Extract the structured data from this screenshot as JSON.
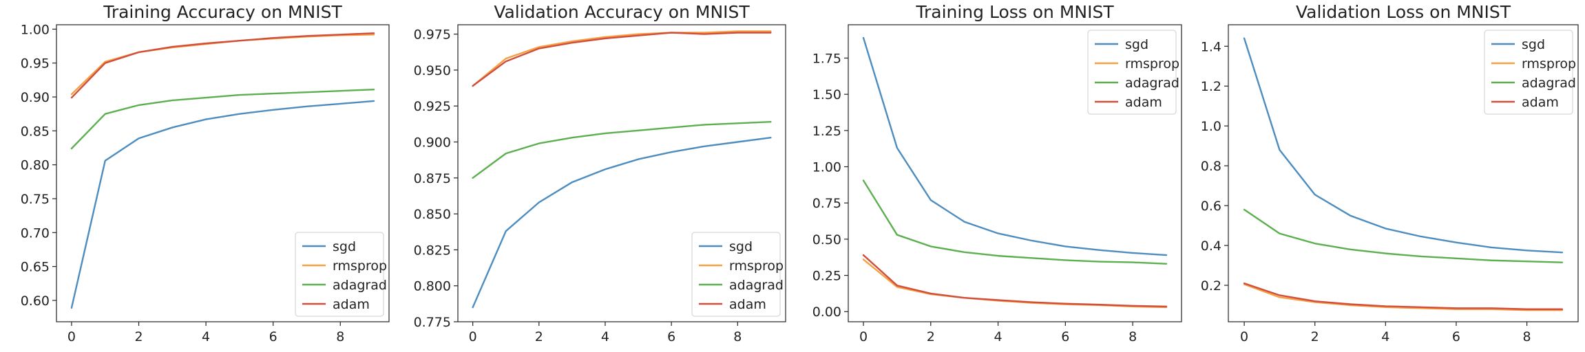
{
  "chart_data": [
    {
      "type": "line",
      "title": "Training Accuracy on MNIST",
      "xlabel": "",
      "ylabel": "",
      "x": [
        0,
        1,
        2,
        3,
        4,
        5,
        6,
        7,
        8,
        9
      ],
      "xlim": [
        -0.45,
        9.45
      ],
      "ylim": [
        0.5685,
        1.0065
      ],
      "xticks": [
        0,
        2,
        4,
        6,
        8
      ],
      "xtick_labels": [
        "0",
        "2",
        "4",
        "6",
        "8"
      ],
      "yticks": [
        0.6,
        0.65,
        0.7,
        0.75,
        0.8,
        0.85,
        0.9,
        0.95,
        1.0
      ],
      "ytick_labels": [
        "0.60",
        "0.65",
        "0.70",
        "0.75",
        "0.80",
        "0.85",
        "0.90",
        "0.95",
        "1.00"
      ],
      "grid": false,
      "legend_position": "lower-right",
      "series": [
        {
          "name": "sgd",
          "color": "#4c8cbf",
          "values": [
            0.589,
            0.806,
            0.839,
            0.855,
            0.867,
            0.875,
            0.881,
            0.886,
            0.89,
            0.894
          ]
        },
        {
          "name": "rmsprop",
          "color": "#f5a044",
          "values": [
            0.904,
            0.952,
            0.966,
            0.973,
            0.978,
            0.983,
            0.986,
            0.989,
            0.991,
            0.992
          ]
        },
        {
          "name": "adagrad",
          "color": "#5caf4f",
          "values": [
            0.824,
            0.875,
            0.888,
            0.895,
            0.899,
            0.903,
            0.905,
            0.907,
            0.909,
            0.911
          ]
        },
        {
          "name": "adam",
          "color": "#d04e3b",
          "values": [
            0.899,
            0.95,
            0.966,
            0.974,
            0.979,
            0.983,
            0.987,
            0.99,
            0.992,
            0.994
          ]
        }
      ]
    },
    {
      "type": "line",
      "title": "Validation Accuracy on MNIST",
      "xlabel": "",
      "ylabel": "",
      "x": [
        0,
        1,
        2,
        3,
        4,
        5,
        6,
        7,
        8,
        9
      ],
      "xlim": [
        -0.45,
        9.45
      ],
      "ylim": [
        0.775,
        0.9815
      ],
      "xticks": [
        0,
        2,
        4,
        6,
        8
      ],
      "xtick_labels": [
        "0",
        "2",
        "4",
        "6",
        "8"
      ],
      "yticks": [
        0.775,
        0.8,
        0.825,
        0.85,
        0.875,
        0.9,
        0.925,
        0.95,
        0.975
      ],
      "ytick_labels": [
        "0.775",
        "0.800",
        "0.825",
        "0.850",
        "0.875",
        "0.900",
        "0.925",
        "0.950",
        "0.975"
      ],
      "grid": false,
      "legend_position": "lower-right",
      "series": [
        {
          "name": "sgd",
          "color": "#4c8cbf",
          "values": [
            0.785,
            0.838,
            0.858,
            0.872,
            0.881,
            0.888,
            0.893,
            0.897,
            0.9,
            0.903
          ]
        },
        {
          "name": "rmsprop",
          "color": "#f5a044",
          "values": [
            0.939,
            0.958,
            0.966,
            0.97,
            0.973,
            0.975,
            0.976,
            0.976,
            0.977,
            0.977
          ]
        },
        {
          "name": "adagrad",
          "color": "#5caf4f",
          "values": [
            0.875,
            0.892,
            0.899,
            0.903,
            0.906,
            0.908,
            0.91,
            0.912,
            0.913,
            0.914
          ]
        },
        {
          "name": "adam",
          "color": "#d04e3b",
          "values": [
            0.939,
            0.956,
            0.965,
            0.969,
            0.972,
            0.974,
            0.976,
            0.975,
            0.976,
            0.976
          ]
        }
      ]
    },
    {
      "type": "line",
      "title": "Training Loss on MNIST",
      "xlabel": "",
      "ylabel": "",
      "x": [
        0,
        1,
        2,
        3,
        4,
        5,
        6,
        7,
        8,
        9
      ],
      "xlim": [
        -0.45,
        9.45
      ],
      "ylim": [
        -0.07,
        1.98
      ],
      "xticks": [
        0,
        2,
        4,
        6,
        8
      ],
      "xtick_labels": [
        "0",
        "2",
        "4",
        "6",
        "8"
      ],
      "yticks": [
        0.0,
        0.25,
        0.5,
        0.75,
        1.0,
        1.25,
        1.5,
        1.75
      ],
      "ytick_labels": [
        "0.00",
        "0.25",
        "0.50",
        "0.75",
        "1.00",
        "1.25",
        "1.50",
        "1.75"
      ],
      "grid": false,
      "legend_position": "upper-right",
      "series": [
        {
          "name": "sgd",
          "color": "#4c8cbf",
          "values": [
            1.89,
            1.13,
            0.77,
            0.62,
            0.54,
            0.49,
            0.45,
            0.425,
            0.405,
            0.39
          ]
        },
        {
          "name": "rmsprop",
          "color": "#f5a044",
          "values": [
            0.36,
            0.17,
            0.12,
            0.095,
            0.075,
            0.06,
            0.05,
            0.045,
            0.035,
            0.03
          ]
        },
        {
          "name": "adagrad",
          "color": "#5caf4f",
          "values": [
            0.905,
            0.53,
            0.45,
            0.41,
            0.385,
            0.37,
            0.355,
            0.345,
            0.34,
            0.33
          ]
        },
        {
          "name": "adam",
          "color": "#d04e3b",
          "values": [
            0.39,
            0.18,
            0.125,
            0.095,
            0.08,
            0.065,
            0.055,
            0.048,
            0.04,
            0.035
          ]
        }
      ]
    },
    {
      "type": "line",
      "title": "Validation Loss on MNIST",
      "xlabel": "",
      "ylabel": "",
      "x": [
        0,
        1,
        2,
        3,
        4,
        5,
        6,
        7,
        8,
        9
      ],
      "xlim": [
        -0.45,
        9.45
      ],
      "ylim": [
        0.017,
        1.508
      ],
      "xticks": [
        0,
        2,
        4,
        6,
        8
      ],
      "xtick_labels": [
        "0",
        "2",
        "4",
        "6",
        "8"
      ],
      "yticks": [
        0.2,
        0.4,
        0.6,
        0.8,
        1.0,
        1.2,
        1.4
      ],
      "ytick_labels": [
        "0.2",
        "0.4",
        "0.6",
        "0.8",
        "1.0",
        "1.2",
        "1.4"
      ],
      "grid": false,
      "legend_position": "upper-right",
      "series": [
        {
          "name": "sgd",
          "color": "#4c8cbf",
          "values": [
            1.44,
            0.88,
            0.655,
            0.55,
            0.485,
            0.445,
            0.415,
            0.39,
            0.375,
            0.365
          ]
        },
        {
          "name": "rmsprop",
          "color": "#f5a044",
          "values": [
            0.205,
            0.14,
            0.115,
            0.1,
            0.09,
            0.085,
            0.08,
            0.08,
            0.075,
            0.075
          ]
        },
        {
          "name": "adagrad",
          "color": "#5caf4f",
          "values": [
            0.58,
            0.46,
            0.41,
            0.38,
            0.36,
            0.345,
            0.335,
            0.325,
            0.32,
            0.315
          ]
        },
        {
          "name": "adam",
          "color": "#d04e3b",
          "values": [
            0.21,
            0.15,
            0.12,
            0.105,
            0.095,
            0.09,
            0.085,
            0.085,
            0.08,
            0.08
          ]
        }
      ]
    }
  ]
}
